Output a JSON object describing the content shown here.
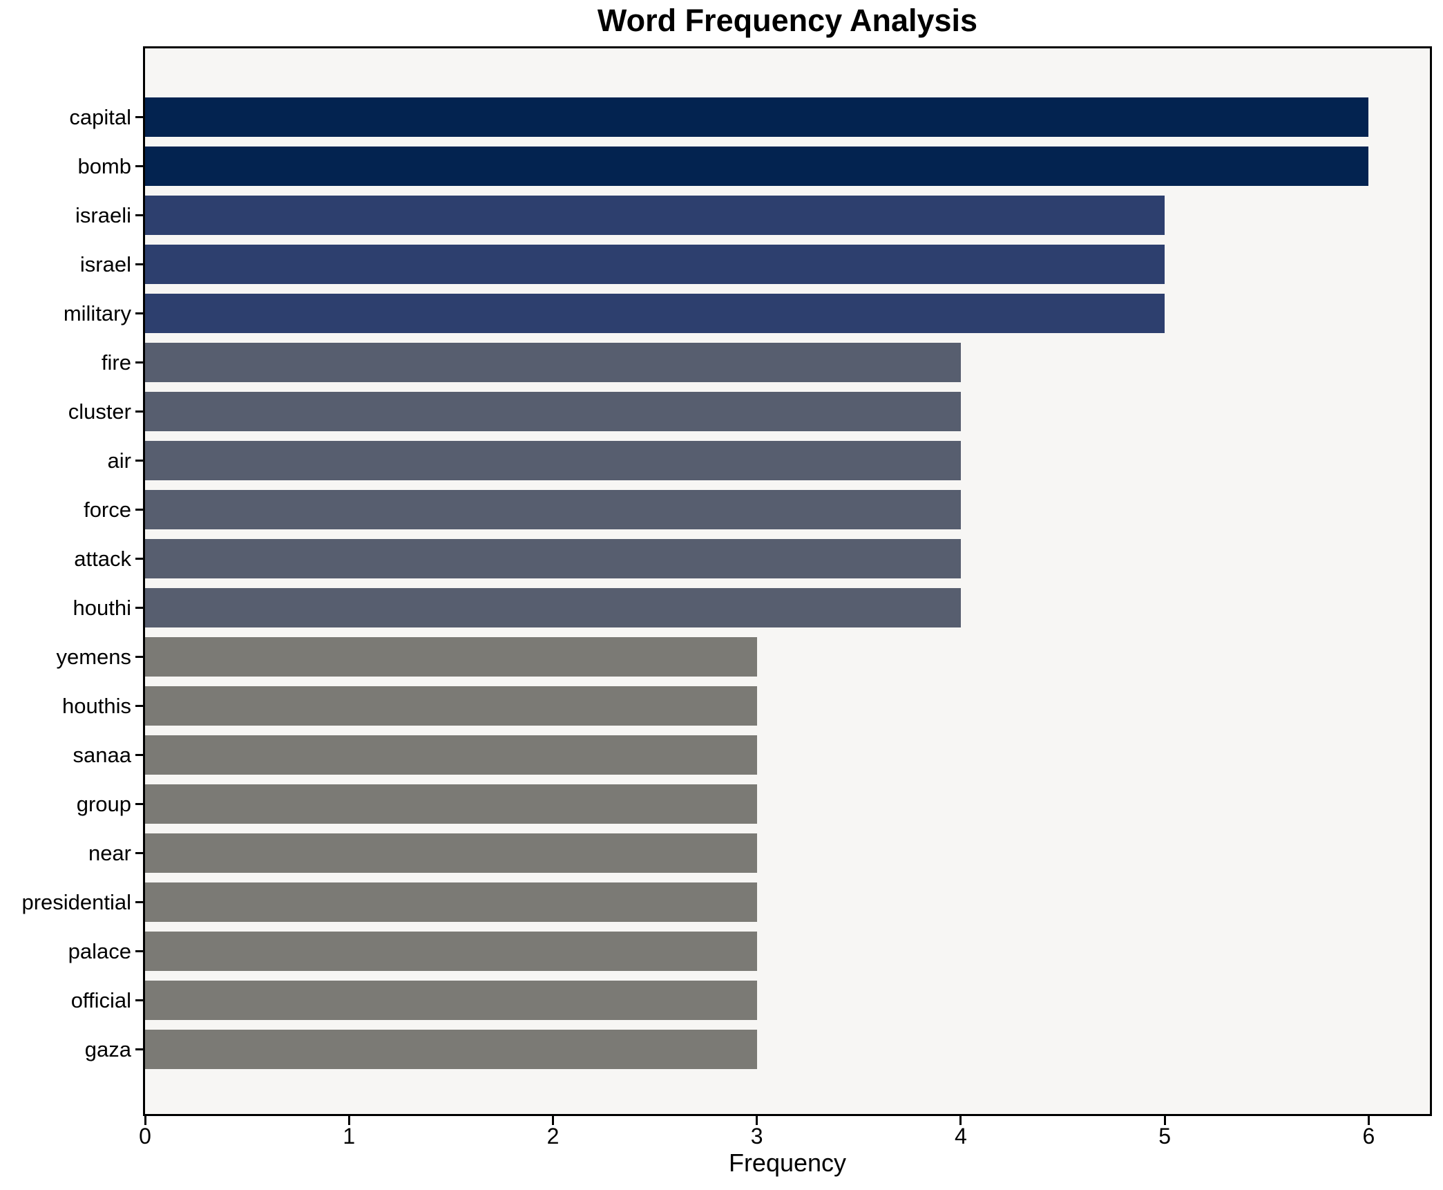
{
  "title": "Word Frequency Analysis",
  "xlabel": "Frequency",
  "colors": {
    "figure_background": "#ffffff",
    "plot_background": "#f7f6f4",
    "frame": "#000000",
    "text": "#000000",
    "bar_freq_6": "#032350",
    "bar_freq_5": "#2d3f6e",
    "bar_freq_4": "#575e6f",
    "bar_freq_3": "#7b7a75"
  },
  "chart_data": {
    "type": "bar",
    "orientation": "horizontal",
    "title": "Word Frequency Analysis",
    "xlabel": "Frequency",
    "ylabel": "",
    "xlim": [
      0,
      6.3
    ],
    "x_ticks": [
      0,
      1,
      2,
      3,
      4,
      5,
      6
    ],
    "grid": false,
    "legend": false,
    "categories": [
      "capital",
      "bomb",
      "israeli",
      "israel",
      "military",
      "fire",
      "cluster",
      "air",
      "force",
      "attack",
      "houthi",
      "yemens",
      "houthis",
      "sanaa",
      "group",
      "near",
      "presidential",
      "palace",
      "official",
      "gaza"
    ],
    "values": [
      6,
      6,
      5,
      5,
      5,
      4,
      4,
      4,
      4,
      4,
      4,
      3,
      3,
      3,
      3,
      3,
      3,
      3,
      3,
      3
    ],
    "bar_color_by_value": {
      "6": "#032350",
      "5": "#2d3f6e",
      "4": "#575e6f",
      "3": "#7b7a75"
    }
  }
}
